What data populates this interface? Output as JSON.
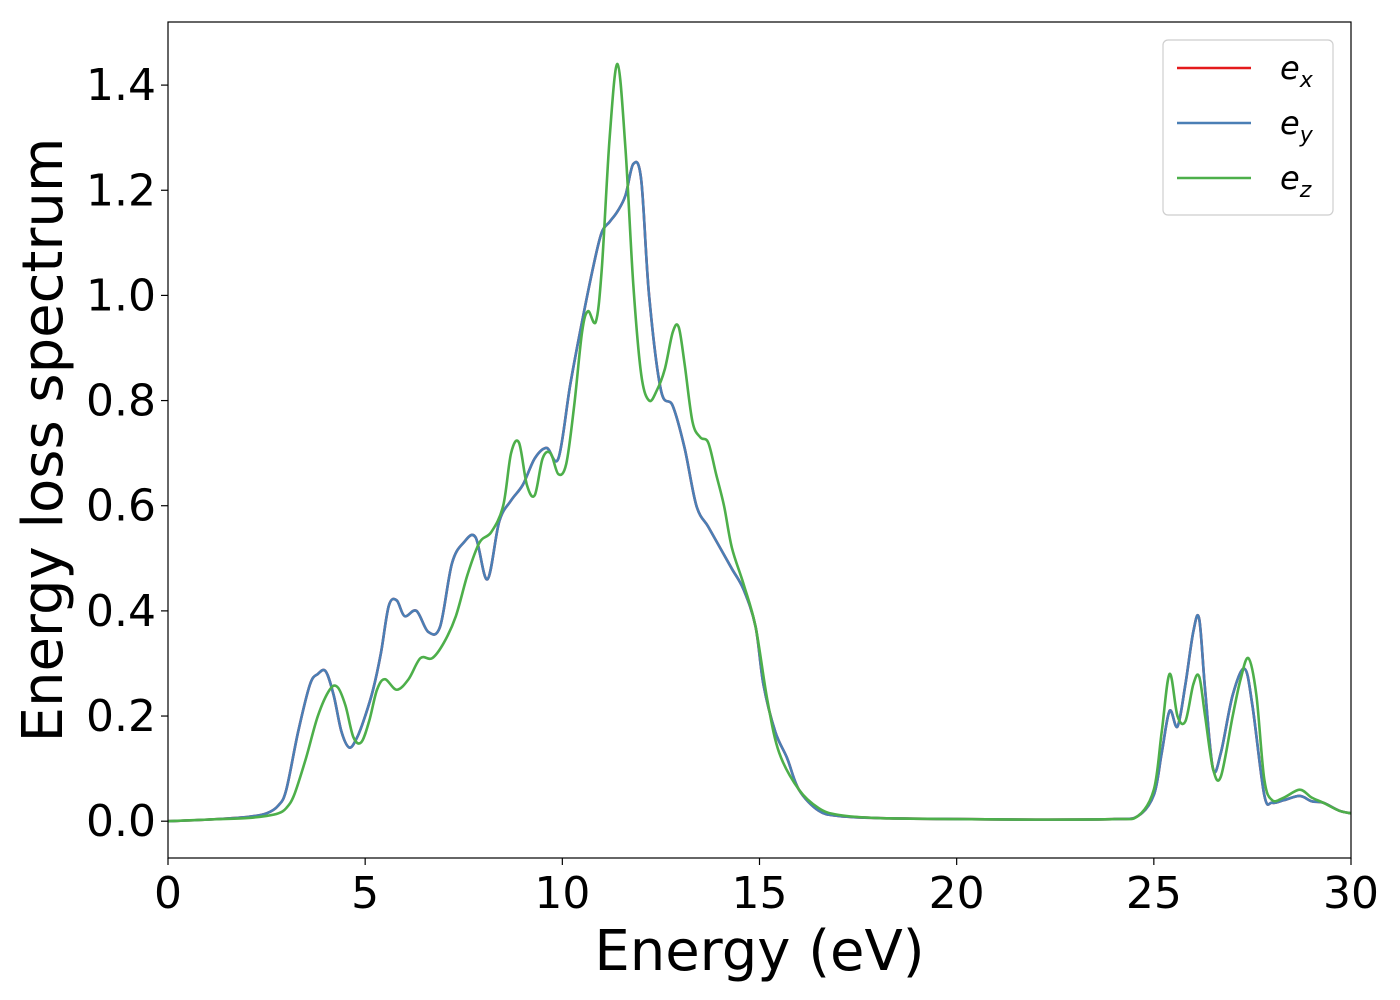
{
  "chart_data": {
    "type": "line",
    "xlabel": "Energy (eV)",
    "ylabel": "Energy loss spectrum",
    "xlim": [
      0,
      30
    ],
    "ylim": [
      -0.07,
      1.52
    ],
    "xticks": [
      0,
      5,
      10,
      15,
      20,
      25,
      30
    ],
    "xtick_labels": [
      "0",
      "5",
      "10",
      "15",
      "20",
      "25",
      "30"
    ],
    "yticks": [
      0.0,
      0.2,
      0.4,
      0.6,
      0.8,
      1.0,
      1.2,
      1.4
    ],
    "ytick_labels": [
      "0.0",
      "0.2",
      "0.4",
      "0.6",
      "0.8",
      "1.0",
      "1.2",
      "1.4"
    ],
    "grid": false,
    "legend_position": "top-right",
    "series": [
      {
        "name": "e",
        "subscript": "x",
        "color": "#e41a1c",
        "x": [
          0,
          1,
          2,
          2.5,
          2.8,
          3.0,
          3.3,
          3.6,
          3.8,
          4.0,
          4.2,
          4.4,
          4.6,
          4.8,
          5.0,
          5.2,
          5.4,
          5.6,
          5.8,
          6.0,
          6.3,
          6.6,
          6.9,
          7.2,
          7.5,
          7.8,
          8.1,
          8.4,
          8.7,
          9.0,
          9.3,
          9.6,
          9.9,
          10.2,
          10.5,
          10.8,
          11.0,
          11.2,
          11.4,
          11.6,
          11.8,
          12.0,
          12.2,
          12.5,
          12.8,
          13.1,
          13.4,
          13.7,
          14.0,
          14.3,
          14.6,
          14.9,
          15.1,
          15.4,
          15.7,
          16.0,
          16.5,
          17,
          18,
          20,
          22,
          24,
          24.6,
          25.0,
          25.2,
          25.4,
          25.6,
          25.8,
          26.0,
          26.15,
          26.3,
          26.5,
          26.7,
          27.0,
          27.3,
          27.5,
          27.8,
          28.0,
          28.3,
          28.7,
          29.0,
          29.3,
          29.7,
          30
        ],
        "y": [
          0,
          0.003,
          0.008,
          0.015,
          0.03,
          0.06,
          0.17,
          0.26,
          0.28,
          0.285,
          0.24,
          0.17,
          0.14,
          0.16,
          0.2,
          0.25,
          0.32,
          0.41,
          0.42,
          0.39,
          0.4,
          0.36,
          0.37,
          0.49,
          0.53,
          0.54,
          0.46,
          0.57,
          0.61,
          0.64,
          0.69,
          0.71,
          0.69,
          0.83,
          0.95,
          1.06,
          1.12,
          1.14,
          1.16,
          1.19,
          1.25,
          1.22,
          1.0,
          0.82,
          0.79,
          0.71,
          0.6,
          0.56,
          0.52,
          0.48,
          0.44,
          0.37,
          0.26,
          0.17,
          0.12,
          0.06,
          0.02,
          0.01,
          0.006,
          0.004,
          0.003,
          0.004,
          0.01,
          0.05,
          0.13,
          0.21,
          0.18,
          0.26,
          0.36,
          0.385,
          0.25,
          0.1,
          0.13,
          0.24,
          0.29,
          0.22,
          0.05,
          0.035,
          0.04,
          0.048,
          0.038,
          0.035,
          0.02,
          0.015
        ]
      },
      {
        "name": "e",
        "subscript": "y",
        "color": "#4a7fb5",
        "x": [
          0,
          1,
          2,
          2.5,
          2.8,
          3.0,
          3.3,
          3.6,
          3.8,
          4.0,
          4.2,
          4.4,
          4.6,
          4.8,
          5.0,
          5.2,
          5.4,
          5.6,
          5.8,
          6.0,
          6.3,
          6.6,
          6.9,
          7.2,
          7.5,
          7.8,
          8.1,
          8.4,
          8.7,
          9.0,
          9.3,
          9.6,
          9.9,
          10.2,
          10.5,
          10.8,
          11.0,
          11.2,
          11.4,
          11.6,
          11.8,
          12.0,
          12.2,
          12.5,
          12.8,
          13.1,
          13.4,
          13.7,
          14.0,
          14.3,
          14.6,
          14.9,
          15.1,
          15.4,
          15.7,
          16.0,
          16.5,
          17,
          18,
          20,
          22,
          24,
          24.6,
          25.0,
          25.2,
          25.4,
          25.6,
          25.8,
          26.0,
          26.15,
          26.3,
          26.5,
          26.7,
          27.0,
          27.3,
          27.5,
          27.8,
          28.0,
          28.3,
          28.7,
          29.0,
          29.3,
          29.7,
          30
        ],
        "y": [
          0,
          0.003,
          0.008,
          0.015,
          0.03,
          0.06,
          0.17,
          0.26,
          0.28,
          0.285,
          0.24,
          0.17,
          0.14,
          0.16,
          0.2,
          0.25,
          0.32,
          0.41,
          0.42,
          0.39,
          0.4,
          0.36,
          0.37,
          0.49,
          0.53,
          0.54,
          0.46,
          0.57,
          0.61,
          0.64,
          0.69,
          0.71,
          0.69,
          0.83,
          0.95,
          1.06,
          1.12,
          1.14,
          1.16,
          1.19,
          1.25,
          1.22,
          1.0,
          0.82,
          0.79,
          0.71,
          0.6,
          0.56,
          0.52,
          0.48,
          0.44,
          0.37,
          0.26,
          0.17,
          0.12,
          0.06,
          0.02,
          0.01,
          0.006,
          0.004,
          0.003,
          0.004,
          0.01,
          0.05,
          0.13,
          0.21,
          0.18,
          0.26,
          0.36,
          0.385,
          0.25,
          0.1,
          0.13,
          0.24,
          0.29,
          0.22,
          0.05,
          0.035,
          0.04,
          0.048,
          0.038,
          0.035,
          0.02,
          0.015
        ]
      },
      {
        "name": "e",
        "subscript": "z",
        "color": "#4daf4a",
        "x": [
          0,
          1,
          2,
          2.5,
          2.8,
          3.0,
          3.2,
          3.5,
          3.8,
          4.1,
          4.3,
          4.5,
          4.7,
          4.9,
          5.1,
          5.3,
          5.5,
          5.8,
          6.1,
          6.4,
          6.7,
          7.0,
          7.3,
          7.6,
          7.9,
          8.2,
          8.5,
          8.7,
          8.9,
          9.1,
          9.3,
          9.5,
          9.7,
          9.9,
          10.1,
          10.3,
          10.5,
          10.65,
          10.85,
          11.0,
          11.2,
          11.4,
          11.6,
          11.8,
          12.0,
          12.2,
          12.4,
          12.6,
          12.8,
          12.95,
          13.1,
          13.3,
          13.5,
          13.7,
          13.9,
          14.1,
          14.3,
          14.6,
          14.9,
          15.2,
          15.5,
          16.0,
          16.5,
          17,
          18,
          20,
          22,
          24,
          24.6,
          25.0,
          25.2,
          25.4,
          25.6,
          25.8,
          26.0,
          26.15,
          26.3,
          26.5,
          26.7,
          27.0,
          27.2,
          27.4,
          27.6,
          27.8,
          28.0,
          28.3,
          28.7,
          29.0,
          29.3,
          29.7,
          30
        ],
        "y": [
          0,
          0.003,
          0.006,
          0.01,
          0.015,
          0.025,
          0.05,
          0.12,
          0.2,
          0.25,
          0.255,
          0.22,
          0.16,
          0.15,
          0.19,
          0.25,
          0.27,
          0.25,
          0.27,
          0.31,
          0.31,
          0.34,
          0.39,
          0.47,
          0.53,
          0.55,
          0.6,
          0.7,
          0.72,
          0.64,
          0.62,
          0.69,
          0.7,
          0.66,
          0.68,
          0.79,
          0.93,
          0.97,
          0.95,
          1.05,
          1.3,
          1.44,
          1.28,
          1.02,
          0.85,
          0.8,
          0.82,
          0.86,
          0.93,
          0.94,
          0.87,
          0.76,
          0.73,
          0.72,
          0.66,
          0.6,
          0.52,
          0.45,
          0.37,
          0.23,
          0.13,
          0.06,
          0.025,
          0.012,
          0.006,
          0.004,
          0.003,
          0.004,
          0.01,
          0.06,
          0.17,
          0.28,
          0.2,
          0.19,
          0.26,
          0.275,
          0.2,
          0.1,
          0.085,
          0.2,
          0.27,
          0.31,
          0.24,
          0.08,
          0.04,
          0.045,
          0.06,
          0.045,
          0.035,
          0.02,
          0.015
        ]
      }
    ]
  }
}
